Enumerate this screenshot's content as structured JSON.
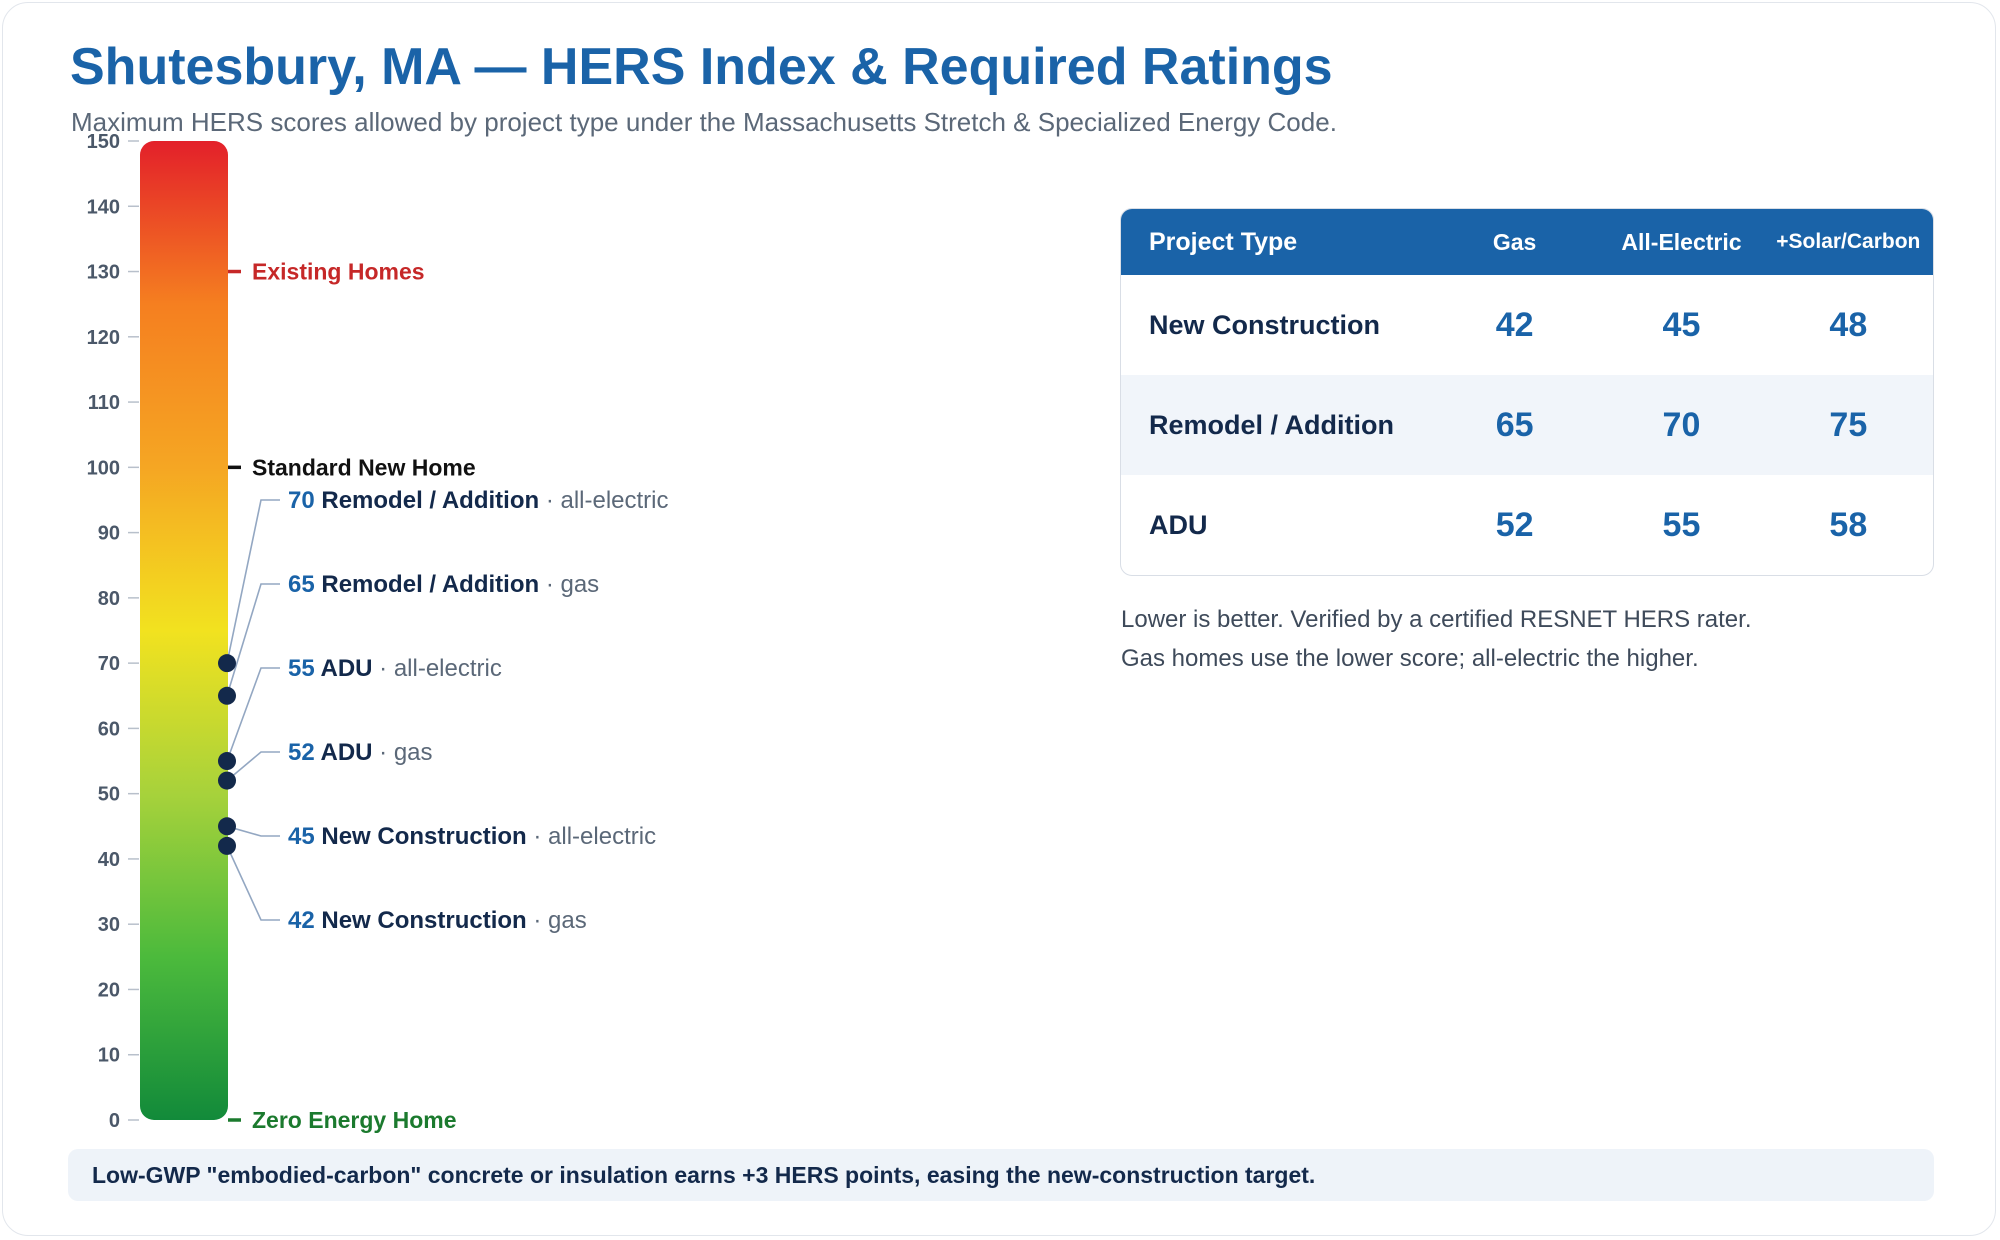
{
  "page": {
    "title": "Shutesbury, MA — HERS Index & Required Ratings",
    "subtitle": "Maximum HERS scores allowed by project type under the Massachusetts Stretch & Specialized Energy Code."
  },
  "chart_data": {
    "type": "scale",
    "ylim": [
      0,
      150
    ],
    "ticks": [
      0,
      10,
      20,
      30,
      40,
      50,
      60,
      70,
      80,
      90,
      100,
      110,
      120,
      130,
      140,
      150
    ],
    "gradient_colors": [
      "#e3202a",
      "#f57f20",
      "#f5a623",
      "#f2e21f",
      "#a7d23b",
      "#4cba3c",
      "#128a3a"
    ],
    "reference_marks": [
      {
        "value": 130,
        "label": "Existing Homes",
        "color": "#c62828"
      },
      {
        "value": 100,
        "label": "Standard New Home",
        "color": "#111111"
      },
      {
        "value": 0,
        "label": "Zero Energy Home",
        "color": "#1b7a2e"
      }
    ],
    "points": [
      {
        "value": 70,
        "project": "Remodel / Addition",
        "fuel": "all-electric"
      },
      {
        "value": 65,
        "project": "Remodel / Addition",
        "fuel": "gas"
      },
      {
        "value": 55,
        "project": "ADU",
        "fuel": "all-electric"
      },
      {
        "value": 52,
        "project": "ADU",
        "fuel": "gas"
      },
      {
        "value": 45,
        "project": "New Construction",
        "fuel": "all-electric"
      },
      {
        "value": 42,
        "project": "New Construction",
        "fuel": "gas"
      }
    ],
    "point_color": "#13294b",
    "separator": "·"
  },
  "table": {
    "headers": [
      "Project Type",
      "Gas",
      "All-Electric",
      "+Solar/Carbon"
    ],
    "rows": [
      {
        "type": "New Construction",
        "gas": "42",
        "electric": "45",
        "solar": "48"
      },
      {
        "type": "Remodel / Addition",
        "gas": "65",
        "electric": "70",
        "solar": "75"
      },
      {
        "type": "ADU",
        "gas": "52",
        "electric": "55",
        "solar": "58"
      }
    ]
  },
  "notes": [
    "Lower is better. Verified by a certified RESNET HERS rater.",
    "Gas homes use the lower score; all-electric the higher."
  ],
  "footer": "Low-GWP \"embodied-carbon\" concrete or insulation earns +3 HERS points, easing the new-construction target."
}
